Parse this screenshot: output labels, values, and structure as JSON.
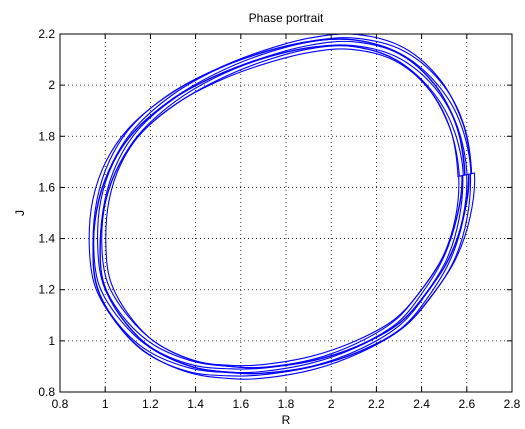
{
  "chart_data": {
    "type": "line",
    "title": "Phase portrait",
    "xlabel": "R",
    "ylabel": "J",
    "xlim": [
      0.8,
      2.8
    ],
    "ylim": [
      0.8,
      2.2
    ],
    "xticks": [
      "0.8",
      "1",
      "1.2",
      "1.4",
      "1.6",
      "1.8",
      "2",
      "2.2",
      "2.4",
      "2.6",
      "2.8"
    ],
    "yticks": [
      "0.8",
      "1",
      "1.2",
      "1.4",
      "1.6",
      "1.8",
      "2",
      "2.2"
    ],
    "grid": true,
    "line_color": "#0000ff",
    "series": [
      {
        "description": "quasi-periodic orbit (trajectory traced repeatedly around a closed loop)",
        "x": [
          2.6,
          2.58,
          2.52,
          2.42,
          2.3,
          2.12,
          1.92,
          1.7,
          1.55,
          1.38,
          1.2,
          1.07,
          0.98,
          0.96,
          0.98,
          1.04,
          1.14,
          1.3,
          1.48,
          1.68,
          1.9,
          2.1,
          2.3,
          2.46,
          2.56,
          2.6
        ],
        "y": [
          1.65,
          1.48,
          1.32,
          1.18,
          1.06,
          0.97,
          0.91,
          0.88,
          0.88,
          0.9,
          0.97,
          1.08,
          1.22,
          1.38,
          1.55,
          1.7,
          1.83,
          1.95,
          2.04,
          2.11,
          2.16,
          2.17,
          2.12,
          2.0,
          1.84,
          1.65
        ]
      }
    ]
  }
}
